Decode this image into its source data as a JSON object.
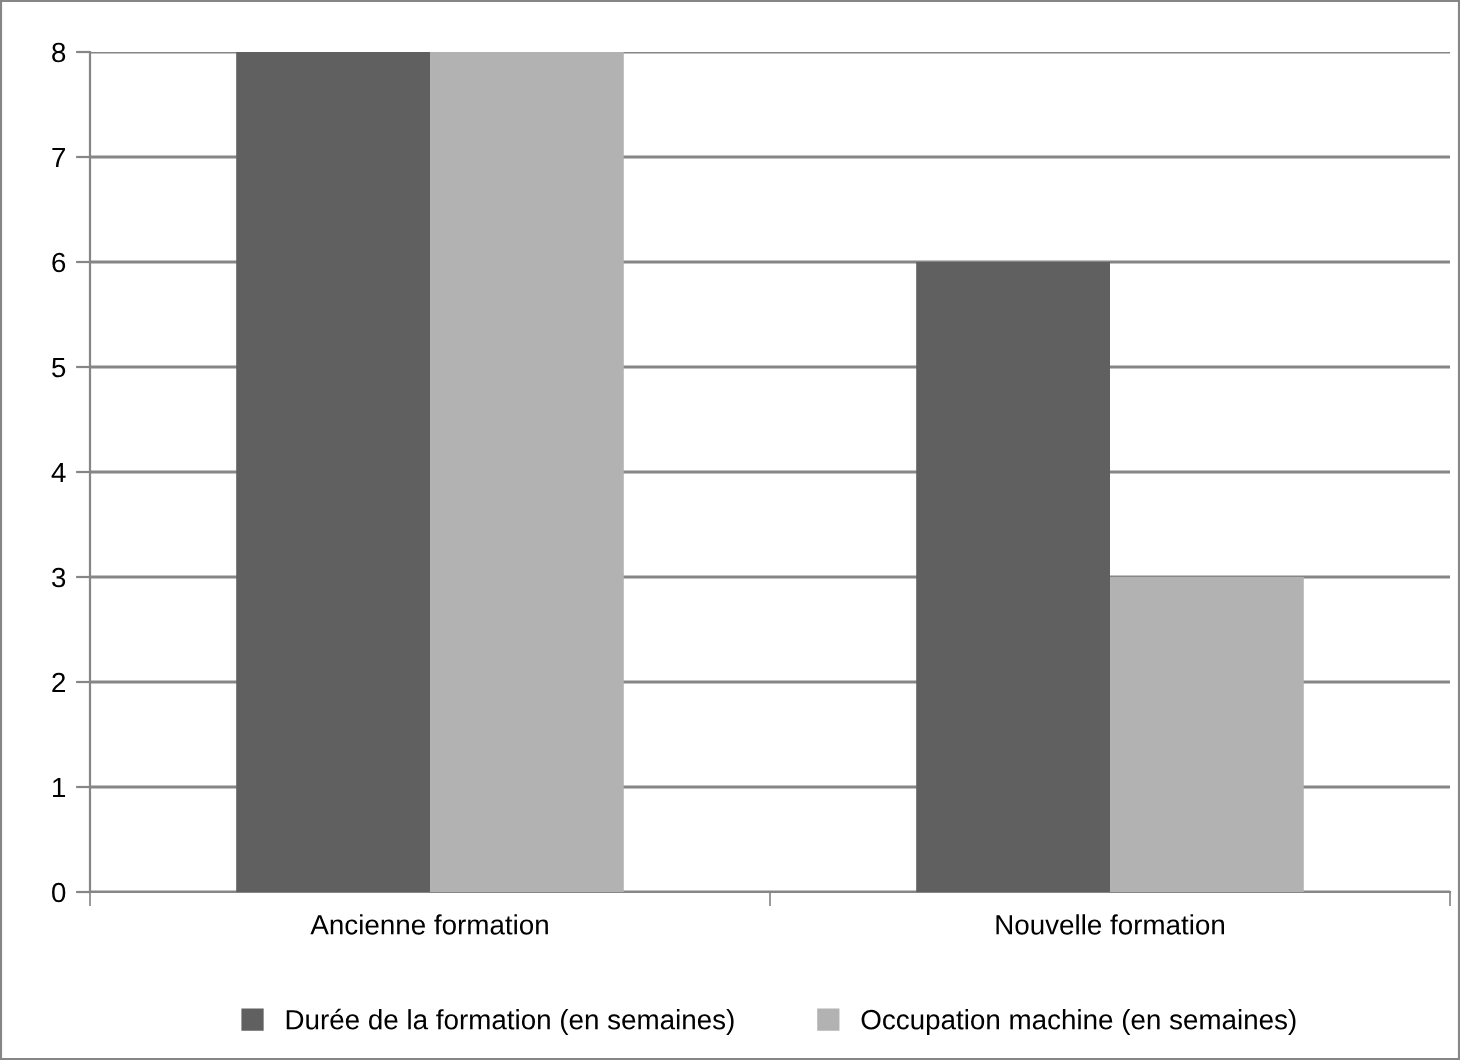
{
  "chart_data": {
    "type": "bar",
    "categories": [
      "Ancienne formation",
      "Nouvelle formation"
    ],
    "series": [
      {
        "name": "Durée de la formation (en semaines)",
        "color": "#606060",
        "values": [
          8,
          6
        ]
      },
      {
        "name": "Occupation machine (en semaines)",
        "color": "#b2b2b2",
        "values": [
          8,
          3
        ]
      }
    ],
    "ylim": [
      0,
      8
    ],
    "yticks": [
      0,
      1,
      2,
      3,
      4,
      5,
      6,
      7,
      8
    ],
    "grid": "y",
    "legend": "bottom"
  }
}
